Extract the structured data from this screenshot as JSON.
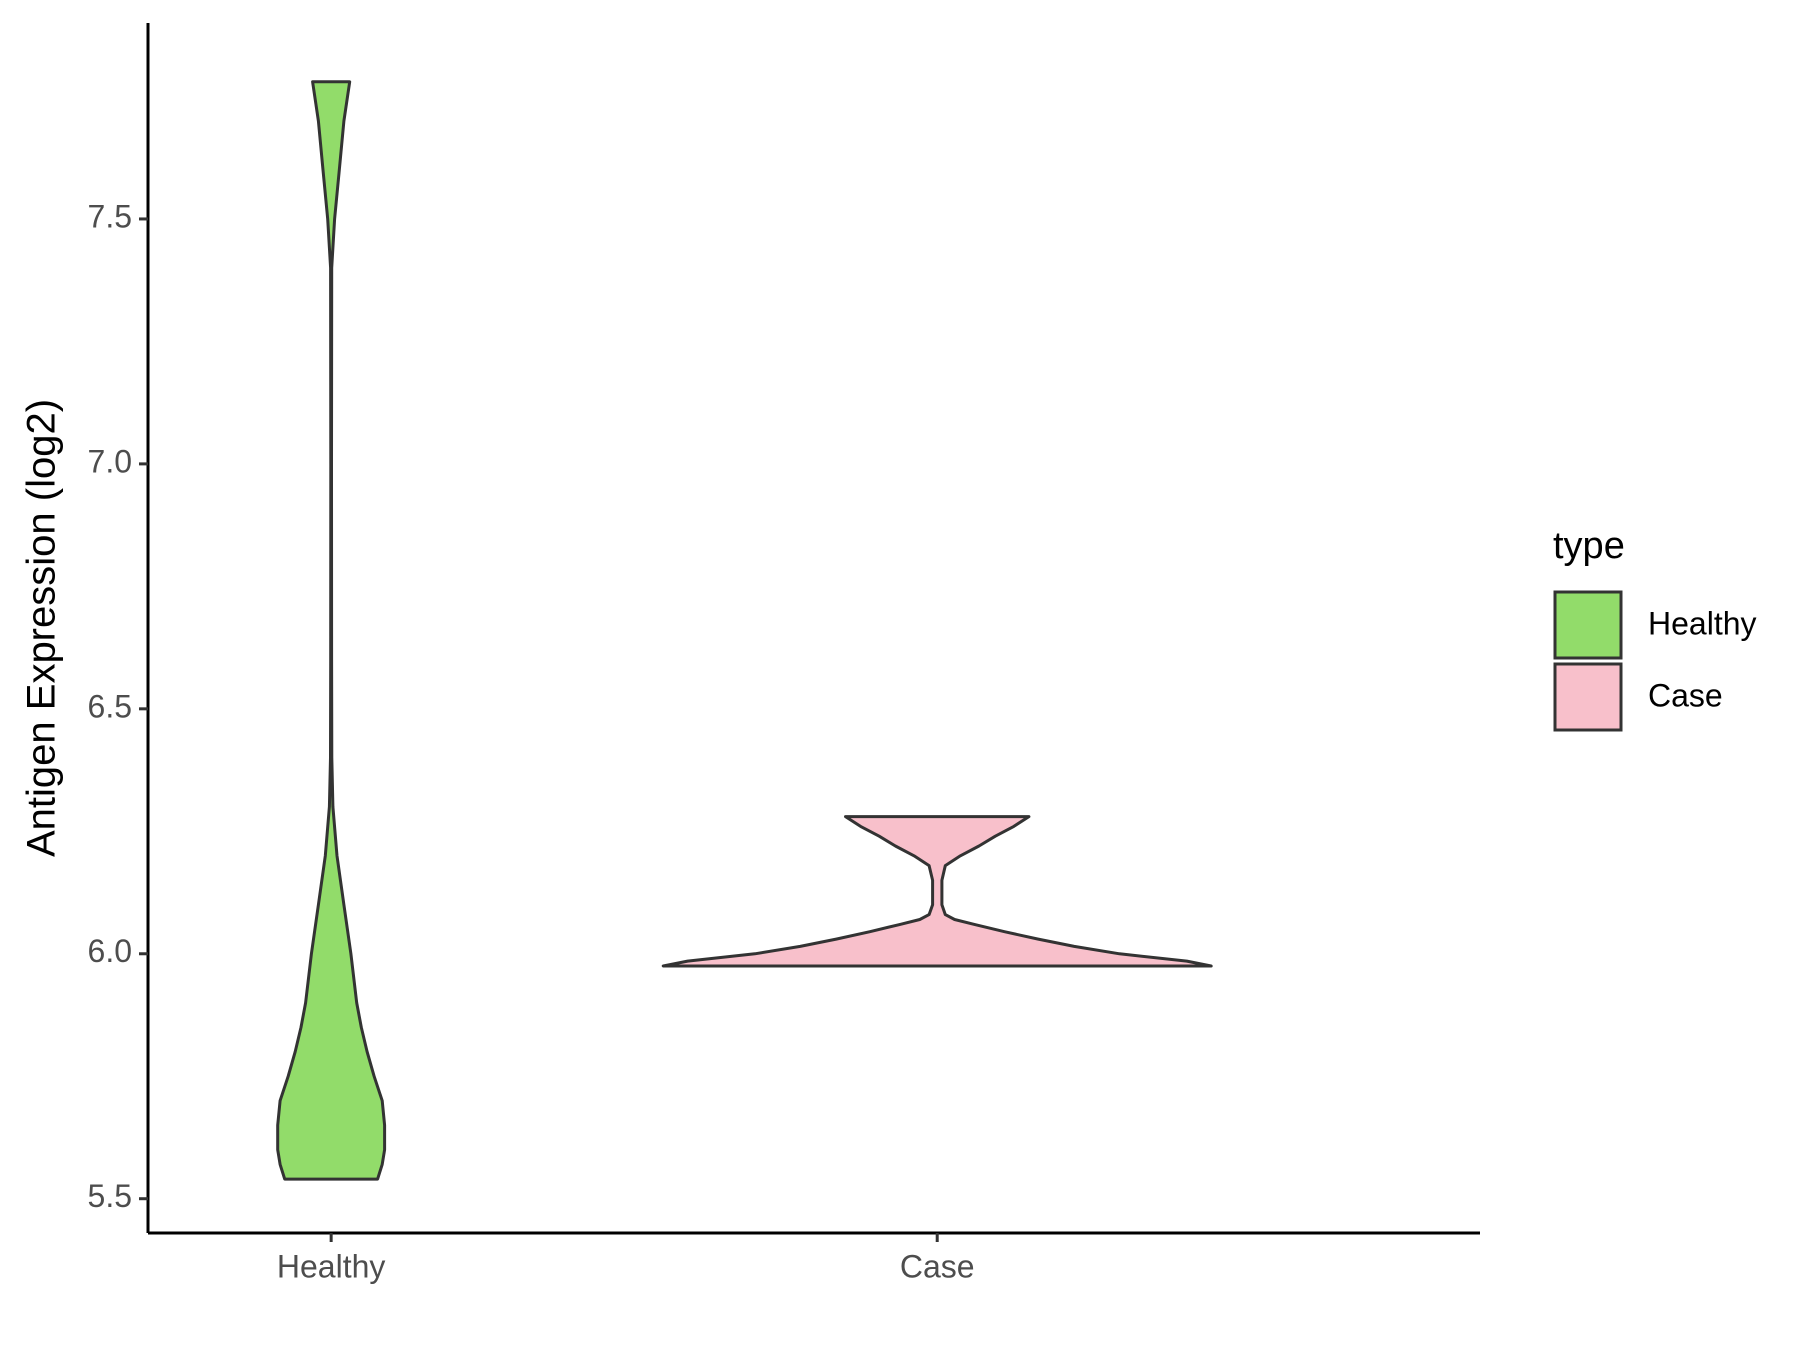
{
  "chart_data": {
    "type": "violin",
    "y_label": "Antigen Expression (log2)",
    "categories": [
      "Healthy",
      "Case"
    ],
    "series": [
      {
        "name": "Healthy",
        "color": "#92dc6a",
        "y": [
          5.54,
          5.57,
          5.6,
          5.65,
          5.7,
          5.75,
          5.8,
          5.85,
          5.9,
          6.0,
          6.1,
          6.2,
          6.3,
          6.4,
          6.6,
          7.0,
          7.4,
          7.5,
          7.6,
          7.7,
          7.78
        ],
        "width": [
          40,
          44,
          46,
          46,
          44,
          37,
          31,
          26,
          22,
          17,
          11,
          5,
          1.5,
          0.6,
          0.4,
          0.3,
          0.5,
          3,
          7,
          11,
          16
        ]
      },
      {
        "name": "Case",
        "color": "#f8c0cb",
        "y": [
          5.975,
          5.985,
          6.0,
          6.015,
          6.03,
          6.045,
          6.06,
          6.07,
          6.08,
          6.1,
          6.15,
          6.18,
          6.2,
          6.22,
          6.24,
          6.26,
          6.28
        ],
        "width": [
          236,
          215,
          157,
          118,
          87,
          58,
          32,
          15,
          7,
          4,
          4,
          7,
          20,
          36,
          50,
          66,
          79
        ]
      }
    ],
    "ylim": [
      5.43,
      7.9
    ],
    "yticks": [
      5.5,
      {
        "value": 6,
        "label": "6.0"
      },
      6.5,
      {
        "value": 7,
        "label": "7.0"
      },
      7.5
    ],
    "legend": {
      "title": "type",
      "position": "right"
    },
    "outline_color": "#333333"
  }
}
